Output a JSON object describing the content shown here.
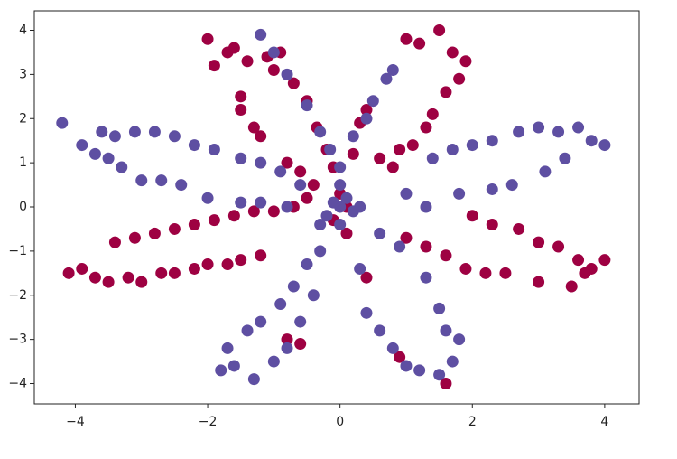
{
  "chart_data": {
    "type": "scatter",
    "xlim": [
      -4.62,
      4.52
    ],
    "ylim": [
      -4.46,
      4.44
    ],
    "xticks": [
      {
        "value": -4,
        "label": "−4"
      },
      {
        "value": -2,
        "label": "−2"
      },
      0,
      2,
      4
    ],
    "yticks": [
      {
        "value": -4,
        "label": "−4"
      },
      {
        "value": -3,
        "label": "−3"
      },
      {
        "value": -2,
        "label": "−2"
      },
      {
        "value": -1,
        "label": "−1"
      },
      0,
      1,
      2,
      3,
      4
    ],
    "series": [
      {
        "name": "0",
        "color": "#9e0142",
        "x": [
          -2.0,
          -1.9,
          -1.7,
          -1.5,
          -1.5,
          -1.3,
          -1.2,
          -1.1,
          -0.9,
          -1.6,
          -1.4,
          -1.0,
          -0.7,
          -0.5,
          -0.35,
          -0.2,
          -0.1,
          -0.8,
          -0.6,
          -0.4,
          1.0,
          1.2,
          1.5,
          1.7,
          1.9,
          1.8,
          1.6,
          1.4,
          1.3,
          1.1,
          0.9,
          0.6,
          0.4,
          0.3,
          0.2,
          0.8,
          -4.1,
          -3.9,
          -3.7,
          -3.5,
          -3.2,
          -3.0,
          -2.7,
          -2.5,
          -2.2,
          -2.0,
          -1.7,
          -1.5,
          -1.2,
          -3.4,
          -3.1,
          -2.8,
          -2.5,
          -2.2,
          -1.9,
          -1.6,
          -1.3,
          -1.0,
          -0.7,
          -0.5,
          1.0,
          1.3,
          1.6,
          1.9,
          2.2,
          2.5,
          2.0,
          2.3,
          2.7,
          3.0,
          3.3,
          3.6,
          3.8,
          4.0,
          3.5,
          3.0,
          3.7,
          0.1,
          0.4,
          0.9,
          1.6,
          -0.6,
          -0.8,
          0.0,
          0.1,
          -0.1
        ],
        "y": [
          3.8,
          3.2,
          3.5,
          2.5,
          2.2,
          1.8,
          1.6,
          3.4,
          3.5,
          3.6,
          3.3,
          3.1,
          2.8,
          2.4,
          1.8,
          1.3,
          0.9,
          1.0,
          0.8,
          0.5,
          3.8,
          3.7,
          4.0,
          3.5,
          3.3,
          2.9,
          2.6,
          2.1,
          1.8,
          1.4,
          1.3,
          1.1,
          2.2,
          1.9,
          1.2,
          0.9,
          -1.5,
          -1.4,
          -1.6,
          -1.7,
          -1.6,
          -1.7,
          -1.5,
          -1.5,
          -1.4,
          -1.3,
          -1.3,
          -1.2,
          -1.1,
          -0.8,
          -0.7,
          -0.6,
          -0.5,
          -0.4,
          -0.3,
          -0.2,
          -0.1,
          -0.1,
          0.0,
          0.2,
          -0.7,
          -0.9,
          -1.1,
          -1.4,
          -1.5,
          -1.5,
          -0.2,
          -0.4,
          -0.5,
          -0.8,
          -0.9,
          -1.2,
          -1.4,
          -1.2,
          -1.8,
          -1.7,
          -1.5,
          -0.6,
          -1.6,
          -3.4,
          -4.0,
          -3.1,
          -3.0,
          0.3,
          0.0,
          -0.3
        ]
      },
      {
        "name": "1",
        "color": "#5e4fa2",
        "x": [
          -4.2,
          -3.9,
          -3.6,
          -3.4,
          -3.1,
          -2.8,
          -2.5,
          -2.2,
          -1.9,
          -1.5,
          -1.2,
          -0.9,
          -0.6,
          -3.7,
          -3.5,
          -3.3,
          -3.0,
          -2.7,
          -2.4,
          -2.0,
          -1.5,
          -1.2,
          -0.8,
          -1.2,
          -1.0,
          -0.8,
          -0.5,
          -0.3,
          -0.15,
          0.0,
          0.5,
          0.7,
          0.8,
          0.4,
          0.2,
          1.0,
          1.4,
          1.7,
          2.0,
          2.3,
          2.7,
          3.0,
          3.3,
          3.6,
          3.8,
          4.0,
          3.4,
          3.1,
          2.6,
          2.3,
          1.8,
          1.3,
          -0.3,
          -0.5,
          -0.7,
          -0.9,
          -1.2,
          -1.4,
          -1.7,
          -1.8,
          -1.6,
          -1.3,
          -1.0,
          -0.8,
          -0.6,
          -0.4,
          0.3,
          0.4,
          0.6,
          0.8,
          1.0,
          1.2,
          1.5,
          1.7,
          1.8,
          1.6,
          1.5,
          1.3,
          0.9,
          0.6,
          0.0,
          -0.1,
          0.1,
          -0.2,
          0.2,
          0.0,
          -0.3,
          0.3,
          0.0
        ],
        "y": [
          1.9,
          1.4,
          1.7,
          1.6,
          1.7,
          1.7,
          1.6,
          1.4,
          1.3,
          1.1,
          1.0,
          0.8,
          0.5,
          1.2,
          1.1,
          0.9,
          0.6,
          0.6,
          0.5,
          0.2,
          0.1,
          0.1,
          0.0,
          3.9,
          3.5,
          3.0,
          2.3,
          1.7,
          1.3,
          0.9,
          2.4,
          2.9,
          3.1,
          2.0,
          1.6,
          0.3,
          1.1,
          1.3,
          1.4,
          1.5,
          1.7,
          1.8,
          1.7,
          1.8,
          1.5,
          1.4,
          1.1,
          0.8,
          0.5,
          0.4,
          0.3,
          0.0,
          -1.0,
          -1.3,
          -1.8,
          -2.2,
          -2.6,
          -2.8,
          -3.2,
          -3.7,
          -3.6,
          -3.9,
          -3.5,
          -3.2,
          -2.6,
          -2.0,
          -1.4,
          -2.4,
          -2.8,
          -3.2,
          -3.6,
          -3.7,
          -3.8,
          -3.5,
          -3.0,
          -2.8,
          -2.3,
          -1.6,
          -0.9,
          -0.6,
          0.0,
          0.1,
          0.2,
          -0.2,
          -0.1,
          -0.4,
          -0.4,
          0.0,
          0.5
        ]
      }
    ]
  }
}
